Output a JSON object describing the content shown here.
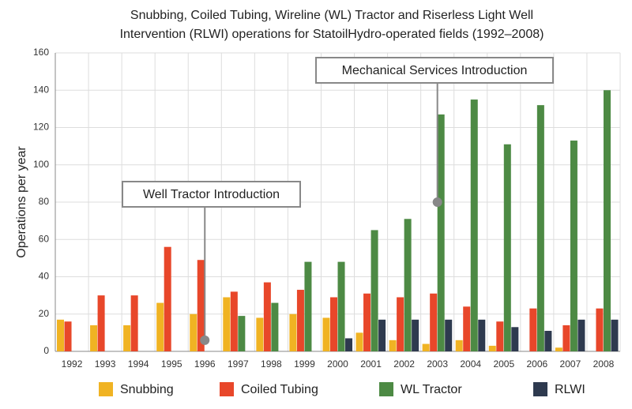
{
  "chart_data": {
    "type": "bar",
    "title": [
      "Snubbing, Coiled Tubing, Wireline (WL) Tractor and Riserless Light Well",
      "Intervention (RLWI) operations for StatoilHydro-operated fields (1992–2008)"
    ],
    "y_label": "Operations per year",
    "categories": [
      "1992",
      "1993",
      "1994",
      "1995",
      "1996",
      "1997",
      "1998",
      "1999",
      "2000",
      "2001",
      "2002",
      "2003",
      "2004",
      "2005",
      "2006",
      "2007",
      "2008"
    ],
    "series": [
      {
        "name": "Snubbing",
        "color": "#f0b323",
        "values": [
          17,
          14,
          14,
          26,
          20,
          29,
          18,
          20,
          18,
          10,
          6,
          4,
          6,
          3,
          0,
          2,
          0
        ]
      },
      {
        "name": "Coiled Tubing",
        "color": "#e8472a",
        "values": [
          16,
          30,
          30,
          56,
          49,
          32,
          37,
          33,
          29,
          31,
          29,
          31,
          24,
          16,
          23,
          14,
          23
        ]
      },
      {
        "name": "WL Tractor",
        "color": "#4d8a44",
        "values": [
          0,
          0,
          0,
          0,
          0,
          19,
          26,
          48,
          48,
          65,
          71,
          127,
          135,
          111,
          132,
          113,
          140
        ]
      },
      {
        "name": "RLWI",
        "color": "#2e3a4f",
        "values": [
          0,
          0,
          0,
          0,
          0,
          0,
          0,
          0,
          7,
          17,
          17,
          17,
          17,
          13,
          11,
          17,
          17
        ]
      }
    ],
    "ylim": [
      0,
      160
    ],
    "yticks": [
      0,
      20,
      40,
      60,
      80,
      100,
      120,
      140,
      160
    ],
    "grid": true,
    "annotations": [
      {
        "text": "Well Tractor Introduction",
        "x": "1996",
        "y": 6
      },
      {
        "text": "Mechanical Services Introduction",
        "x": "2003",
        "y": 80
      }
    ]
  }
}
